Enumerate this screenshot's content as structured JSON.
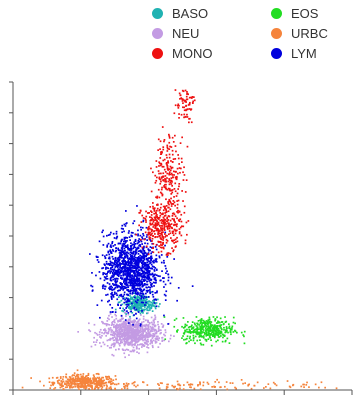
{
  "chart_data": {
    "type": "scatter",
    "title": "",
    "xlabel": "",
    "ylabel": "",
    "xlim": [
      0,
      1000
    ],
    "ylim": [
      0,
      1000
    ],
    "grid": false,
    "legend_position": "top",
    "series": [
      {
        "name": "BASO",
        "color": "#20b2b2"
      },
      {
        "name": "EOS",
        "color": "#22dd22"
      },
      {
        "name": "NEU",
        "color": "#c39be3"
      },
      {
        "name": "URBC",
        "color": "#f5843c"
      },
      {
        "name": "MONO",
        "color": "#ee1111"
      },
      {
        "name": "LYM",
        "color": "#0000dd"
      }
    ],
    "clusters": [
      {
        "series": "URBC",
        "cx": 210,
        "cy": 25,
        "sx": 45,
        "sy": 12,
        "n": 420
      },
      {
        "series": "URBC",
        "cx": 520,
        "cy": 14,
        "sx": 260,
        "sy": 8,
        "n": 160
      },
      {
        "series": "NEU",
        "cx": 350,
        "cy": 185,
        "sx": 42,
        "sy": 25,
        "n": 900
      },
      {
        "series": "EOS",
        "cx": 575,
        "cy": 195,
        "sx": 38,
        "sy": 20,
        "n": 380
      },
      {
        "series": "BASO",
        "cx": 370,
        "cy": 280,
        "sx": 24,
        "sy": 14,
        "n": 260
      },
      {
        "series": "LYM",
        "cx": 350,
        "cy": 390,
        "sx": 42,
        "sy": 58,
        "n": 1300
      },
      {
        "series": "MONO",
        "cx": 440,
        "cy": 530,
        "sx": 30,
        "sy": 38,
        "n": 330
      },
      {
        "series": "MONO",
        "cx": 460,
        "cy": 700,
        "sx": 22,
        "sy": 65,
        "n": 220
      },
      {
        "series": "MONO",
        "cx": 505,
        "cy": 930,
        "sx": 14,
        "sy": 28,
        "n": 70
      }
    ]
  }
}
